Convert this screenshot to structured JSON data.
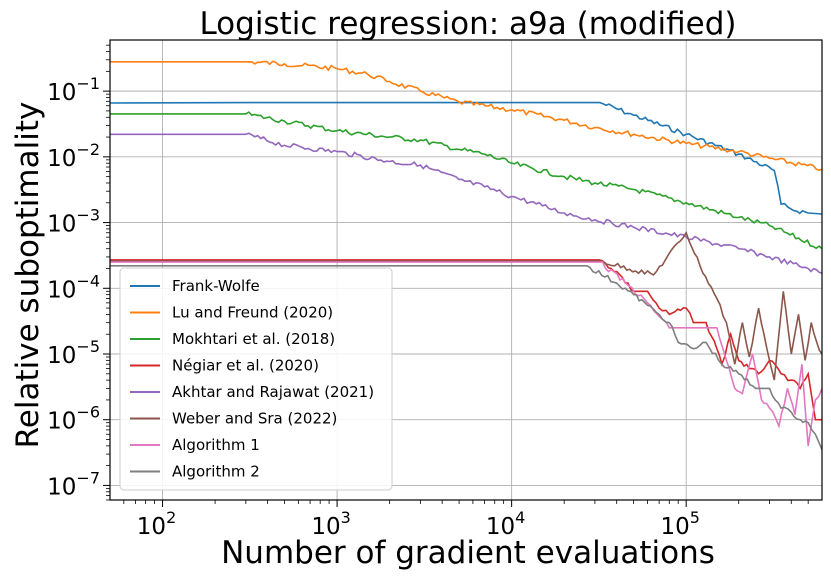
{
  "chart_data": {
    "type": "line",
    "title": "Logistic regression: a9a (modified)",
    "xlabel": "Number of gradient evaluations",
    "ylabel": "Relative suboptimality",
    "x_scale": "log",
    "y_scale": "log",
    "xlim": [
      50,
      600000
    ],
    "ylim": [
      6e-08,
      0.6
    ],
    "grid": true,
    "legend_position": "lower-left",
    "x_ticks": [
      {
        "value": 100,
        "base": "10",
        "exp": "2"
      },
      {
        "value": 1000,
        "base": "10",
        "exp": "3"
      },
      {
        "value": 10000,
        "base": "10",
        "exp": "4"
      },
      {
        "value": 100000,
        "base": "10",
        "exp": "5"
      }
    ],
    "y_ticks": [
      {
        "value": 0.1,
        "base": "10",
        "exp": "−1"
      },
      {
        "value": 0.01,
        "base": "10",
        "exp": "−2"
      },
      {
        "value": 0.001,
        "base": "10",
        "exp": "−3"
      },
      {
        "value": 0.0001,
        "base": "10",
        "exp": "−4"
      },
      {
        "value": 1e-05,
        "base": "10",
        "exp": "−5"
      },
      {
        "value": 1e-06,
        "base": "10",
        "exp": "−6"
      },
      {
        "value": 1e-07,
        "base": "10",
        "exp": "−7"
      }
    ],
    "series": [
      {
        "name": "Frank-Wolfe",
        "color": "#1f77b4",
        "x": [
          50,
          300,
          1000,
          3000,
          10000,
          32000,
          50000,
          100000,
          200000,
          320000,
          350000,
          400000,
          500000,
          600000
        ],
        "y": [
          0.066,
          0.067,
          0.067,
          0.067,
          0.067,
          0.067,
          0.043,
          0.022,
          0.011,
          0.0062,
          0.0019,
          0.0016,
          0.0014,
          0.00135
        ]
      },
      {
        "name": "Lu and Freund (2020)",
        "color": "#ff7f0e",
        "x": [
          50,
          100,
          300,
          500,
          1000,
          1500,
          2000,
          3000,
          5000,
          10000,
          20000,
          30000,
          50000,
          100000,
          200000,
          300000,
          600000
        ],
        "y": [
          0.28,
          0.28,
          0.28,
          0.26,
          0.22,
          0.18,
          0.14,
          0.1,
          0.068,
          0.052,
          0.036,
          0.028,
          0.022,
          0.016,
          0.012,
          0.0095,
          0.0065
        ]
      },
      {
        "name": "Mokhtari et al. (2018)",
        "color": "#2ca02c",
        "x": [
          50,
          100,
          300,
          500,
          1000,
          2000,
          3000,
          5000,
          7000,
          10000,
          20000,
          30000,
          50000,
          100000,
          200000,
          300000,
          600000
        ],
        "y": [
          0.045,
          0.045,
          0.045,
          0.035,
          0.025,
          0.02,
          0.018,
          0.013,
          0.011,
          0.008,
          0.005,
          0.004,
          0.0032,
          0.002,
          0.0012,
          0.0009,
          0.0004
        ]
      },
      {
        "name": "Négiar et al. (2020)",
        "color": "#d62728",
        "x": [
          50,
          100,
          300,
          1000,
          3000,
          10000,
          32000,
          40000,
          50000,
          60000,
          70000,
          80000,
          100000,
          110000,
          130000,
          150000,
          160000,
          180000,
          200000,
          230000,
          260000,
          300000,
          350000,
          400000,
          450000,
          500000,
          550000,
          600000
        ],
        "y": [
          0.00027,
          0.00027,
          0.00027,
          0.00027,
          0.00027,
          0.00027,
          0.00027,
          0.00018,
          9e-05,
          9e-05,
          5e-05,
          4e-05,
          5e-05,
          3e-05,
          3e-05,
          1.2e-05,
          7e-06,
          2e-05,
          8e-06,
          6e-06,
          5e-06,
          8e-06,
          5e-06,
          4e-06,
          3e-06,
          5e-06,
          1e-06,
          1e-06
        ]
      },
      {
        "name": "Akhtar and Rajawat (2021)",
        "color": "#9467bd",
        "x": [
          50,
          100,
          300,
          500,
          1000,
          2000,
          3000,
          5000,
          7000,
          10000,
          15000,
          20000,
          30000,
          50000,
          100000,
          200000,
          300000,
          500000,
          600000
        ],
        "y": [
          0.022,
          0.022,
          0.022,
          0.015,
          0.012,
          0.0085,
          0.0075,
          0.0045,
          0.0035,
          0.0025,
          0.0018,
          0.0014,
          0.0011,
          0.00085,
          0.0006,
          0.0004,
          0.0003,
          0.0002,
          0.00017
        ]
      },
      {
        "name": "Weber and Sra (2022)",
        "color": "#8c564b",
        "x": [
          50,
          100,
          300,
          1000,
          3000,
          10000,
          32000,
          65000,
          100000,
          120000,
          150000,
          170000,
          190000,
          210000,
          230000,
          260000,
          290000,
          320000,
          360000,
          400000,
          440000,
          480000,
          520000,
          560000,
          600000
        ],
        "y": [
          0.00026,
          0.00026,
          0.00026,
          0.00026,
          0.00026,
          0.00026,
          0.00026,
          0.00016,
          0.0007,
          0.00022,
          7e-05,
          3e-05,
          7e-06,
          3e-05,
          9e-06,
          5e-05,
          1.2e-05,
          4e-06,
          9e-05,
          1e-05,
          4e-05,
          8e-06,
          3e-05,
          1.5e-05,
          1e-05
        ]
      },
      {
        "name": "Algorithm 1",
        "color": "#e377c2",
        "x": [
          50,
          100,
          300,
          1000,
          3000,
          10000,
          32000,
          45000,
          60000,
          80000,
          100000,
          130000,
          150000,
          170000,
          190000,
          210000,
          240000,
          270000,
          300000,
          340000,
          380000,
          420000,
          460000,
          500000,
          550000,
          600000
        ],
        "y": [
          0.00025,
          0.00025,
          0.00025,
          0.00025,
          0.00025,
          0.00025,
          0.00025,
          0.00012,
          6e-05,
          2.5e-05,
          2.5e-05,
          2.5e-05,
          2.5e-05,
          8e-06,
          3e-06,
          2.5e-06,
          1e-05,
          2e-06,
          1.5e-06,
          8e-07,
          3e-06,
          1.2e-06,
          7e-06,
          4e-07,
          2e-06,
          3e-06
        ]
      },
      {
        "name": "Algorithm 2",
        "color": "#7f7f7f",
        "x": [
          50,
          100,
          300,
          1000,
          3000,
          10000,
          27000,
          40000,
          50000,
          60000,
          70000,
          80000,
          90000,
          110000,
          130000,
          160000,
          200000,
          250000,
          300000,
          350000,
          400000,
          450000,
          500000,
          550000,
          600000
        ],
        "y": [
          0.00022,
          0.00022,
          0.00022,
          0.00022,
          0.00022,
          0.00022,
          0.00022,
          0.00012,
          8e-05,
          5.5e-05,
          4e-05,
          3e-05,
          1.5e-05,
          1.2e-05,
          1.5e-05,
          7e-06,
          5e-06,
          3e-06,
          3e-06,
          1.5e-06,
          1.3e-06,
          1e-06,
          9e-07,
          6e-07,
          3.5e-07
        ]
      }
    ]
  }
}
